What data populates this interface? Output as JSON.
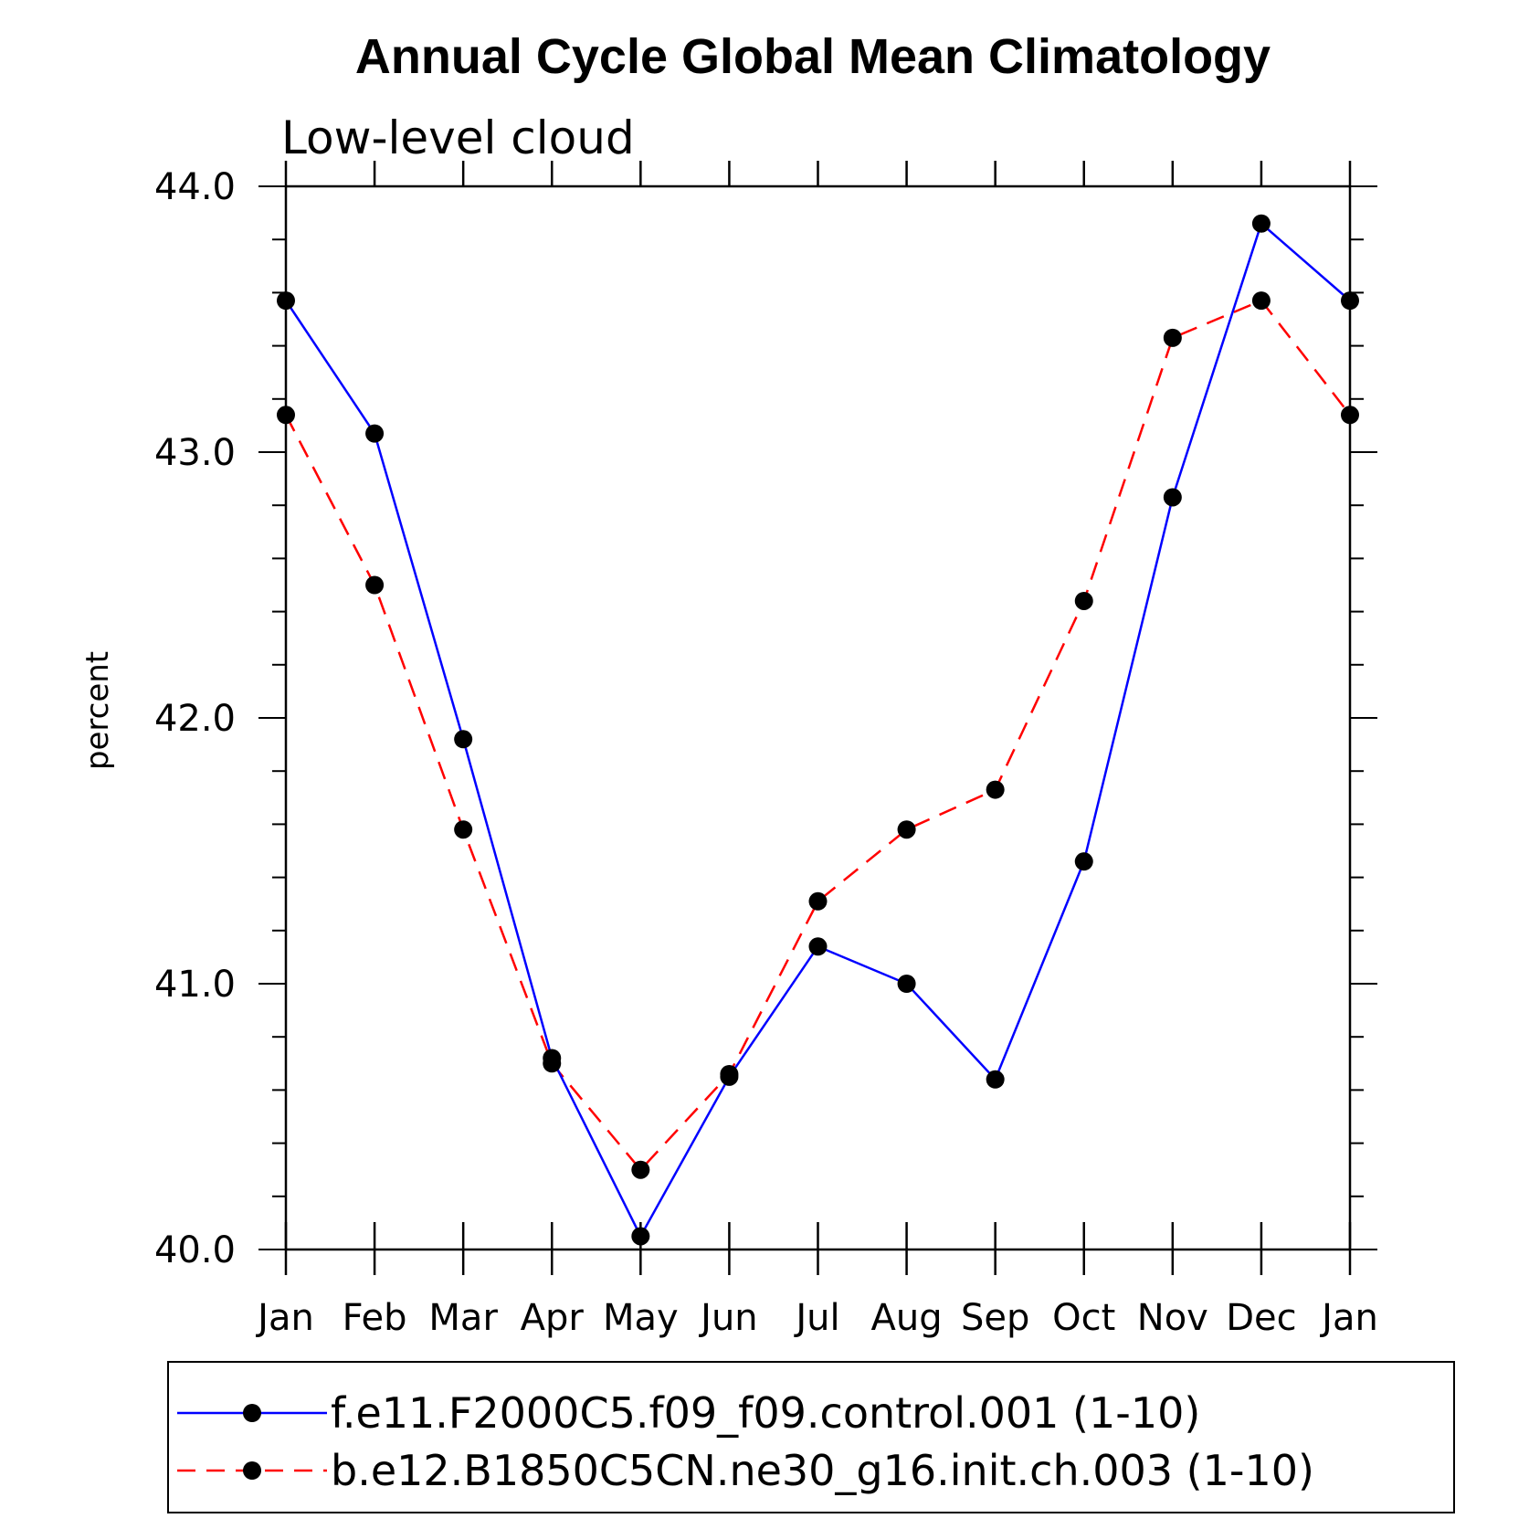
{
  "chart_data": {
    "type": "line",
    "title": "Annual Cycle Global Mean Climatology",
    "subtitle": "Low-level cloud",
    "xlabel": "",
    "ylabel": "percent",
    "categories": [
      "Jan",
      "Feb",
      "Mar",
      "Apr",
      "May",
      "Jun",
      "Jul",
      "Aug",
      "Sep",
      "Oct",
      "Nov",
      "Dec",
      "Jan"
    ],
    "ylim": [
      40.0,
      44.0
    ],
    "yticks": [
      "40.0",
      "41.0",
      "42.0",
      "43.0",
      "44.0"
    ],
    "series": [
      {
        "name": "f.e11.F2000C5.f09_f09.control.001 (1-10)",
        "color": "#0000ff",
        "style": "solid",
        "marker": "dot",
        "values": [
          43.57,
          43.07,
          41.92,
          40.72,
          40.05,
          40.65,
          41.14,
          41.0,
          40.64,
          41.46,
          42.83,
          43.86,
          43.57
        ]
      },
      {
        "name": "b.e12.B1850C5CN.ne30_g16.init.ch.003 (1-10)",
        "color": "#ff0000",
        "style": "dashed",
        "marker": "dot",
        "values": [
          43.14,
          42.5,
          41.58,
          40.7,
          40.3,
          40.66,
          41.31,
          41.58,
          41.73,
          42.44,
          43.43,
          43.57,
          43.14
        ]
      }
    ],
    "legend_position": "bottom"
  }
}
